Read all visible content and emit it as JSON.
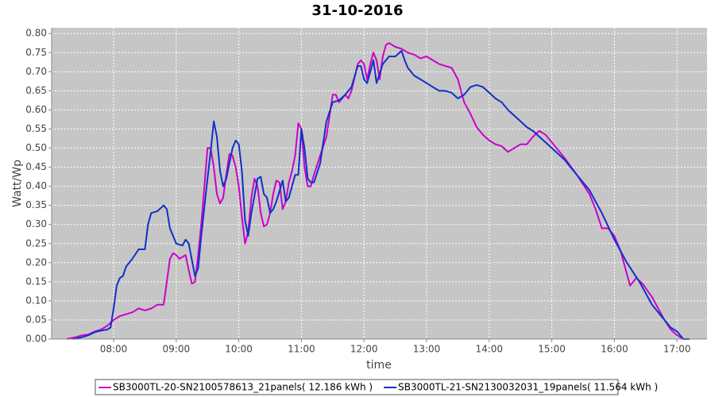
{
  "chart_data": {
    "type": "line",
    "title": "31-10-2016",
    "x_label": "time",
    "y_label": "Watt/Wp",
    "xlim": [
      7.01,
      17.48
    ],
    "xticks": [
      {
        "value": 8,
        "label": "08:00"
      },
      {
        "value": 9,
        "label": "09:00"
      },
      {
        "value": 10,
        "label": "10:00"
      },
      {
        "value": 11,
        "label": "11:00"
      },
      {
        "value": 12,
        "label": "12:00"
      },
      {
        "value": 13,
        "label": "13:00"
      },
      {
        "value": 14,
        "label": "14:00"
      },
      {
        "value": 15,
        "label": "15:00"
      },
      {
        "value": 16,
        "label": "16:00"
      },
      {
        "value": 17,
        "label": "17:00"
      }
    ],
    "ylim": [
      0,
      0.815
    ],
    "yticks": [
      {
        "value": 0,
        "label": "0.00"
      },
      0.05,
      {
        "value": 0.1,
        "label": "0.10"
      },
      0.15,
      {
        "value": 0.2,
        "label": "0.20"
      },
      0.25,
      {
        "value": 0.3,
        "label": "0.30"
      },
      0.35,
      {
        "value": 0.4,
        "label": "0.40"
      },
      0.45,
      {
        "value": 0.5,
        "label": "0.50"
      },
      0.55,
      {
        "value": 0.6,
        "label": "0.60"
      },
      0.65,
      {
        "value": 0.7,
        "label": "0.70"
      },
      0.75,
      {
        "value": 0.8,
        "label": "0.80"
      }
    ],
    "grid": true,
    "series": [
      {
        "name": "SB3000TL-20-SN2100578613_21panels( 12.186 kWh )",
        "color": "#cc00cc",
        "x": [
          7.25,
          7.4,
          7.5,
          7.6,
          7.7,
          7.8,
          7.9,
          8.0,
          8.1,
          8.2,
          8.3,
          8.4,
          8.5,
          8.6,
          8.7,
          8.8,
          8.85,
          8.9,
          8.95,
          9.0,
          9.05,
          9.1,
          9.15,
          9.2,
          9.25,
          9.3,
          9.35,
          9.4,
          9.45,
          9.5,
          9.55,
          9.6,
          9.65,
          9.7,
          9.75,
          9.8,
          9.85,
          9.9,
          9.95,
          10.0,
          10.05,
          10.1,
          10.15,
          10.2,
          10.25,
          10.3,
          10.35,
          10.4,
          10.45,
          10.5,
          10.55,
          10.6,
          10.65,
          10.7,
          10.75,
          10.8,
          10.85,
          10.9,
          10.95,
          11.0,
          11.05,
          11.1,
          11.15,
          11.2,
          11.3,
          11.4,
          11.5,
          11.55,
          11.6,
          11.7,
          11.75,
          11.8,
          11.9,
          11.95,
          12.0,
          12.05,
          12.1,
          12.15,
          12.2,
          12.25,
          12.3,
          12.35,
          12.4,
          12.5,
          12.6,
          12.7,
          12.8,
          12.9,
          13.0,
          13.1,
          13.2,
          13.3,
          13.4,
          13.5,
          13.55,
          13.6,
          13.7,
          13.8,
          13.9,
          14.0,
          14.1,
          14.2,
          14.3,
          14.4,
          14.5,
          14.6,
          14.7,
          14.8,
          14.9,
          15.0,
          15.2,
          15.4,
          15.6,
          15.7,
          15.8,
          15.9,
          16.0,
          16.1,
          16.2,
          16.25,
          16.35,
          16.45,
          16.6,
          16.7,
          16.8,
          16.9,
          17.0,
          17.1
        ],
        "values": [
          0.0,
          0.005,
          0.01,
          0.012,
          0.02,
          0.025,
          0.035,
          0.05,
          0.06,
          0.065,
          0.07,
          0.08,
          0.075,
          0.08,
          0.09,
          0.09,
          0.15,
          0.21,
          0.225,
          0.22,
          0.21,
          0.215,
          0.22,
          0.18,
          0.145,
          0.15,
          0.22,
          0.3,
          0.4,
          0.5,
          0.5,
          0.45,
          0.38,
          0.355,
          0.37,
          0.43,
          0.485,
          0.48,
          0.45,
          0.4,
          0.32,
          0.25,
          0.28,
          0.37,
          0.42,
          0.4,
          0.33,
          0.295,
          0.3,
          0.33,
          0.38,
          0.415,
          0.41,
          0.34,
          0.36,
          0.41,
          0.44,
          0.48,
          0.565,
          0.55,
          0.45,
          0.4,
          0.4,
          0.43,
          0.48,
          0.53,
          0.64,
          0.64,
          0.62,
          0.64,
          0.63,
          0.65,
          0.72,
          0.73,
          0.72,
          0.68,
          0.72,
          0.75,
          0.73,
          0.68,
          0.74,
          0.77,
          0.775,
          0.765,
          0.76,
          0.75,
          0.745,
          0.735,
          0.74,
          0.73,
          0.72,
          0.715,
          0.71,
          0.68,
          0.65,
          0.62,
          0.59,
          0.555,
          0.535,
          0.52,
          0.51,
          0.505,
          0.49,
          0.5,
          0.51,
          0.51,
          0.53,
          0.545,
          0.535,
          0.515,
          0.475,
          0.43,
          0.38,
          0.34,
          0.29,
          0.29,
          0.27,
          0.23,
          0.17,
          0.14,
          0.16,
          0.145,
          0.11,
          0.08,
          0.05,
          0.025,
          0.01,
          0.0
        ]
      },
      {
        "name": "SB3000TL-21-SN2130032031_19panels( 11.564 kWh )",
        "color": "#1030c8",
        "x": [
          7.35,
          7.5,
          7.6,
          7.7,
          7.8,
          7.9,
          7.95,
          8.0,
          8.05,
          8.1,
          8.15,
          8.2,
          8.3,
          8.4,
          8.5,
          8.55,
          8.6,
          8.7,
          8.8,
          8.85,
          8.9,
          9.0,
          9.1,
          9.15,
          9.2,
          9.3,
          9.35,
          9.4,
          9.5,
          9.55,
          9.6,
          9.65,
          9.7,
          9.75,
          9.8,
          9.9,
          9.95,
          10.0,
          10.05,
          10.1,
          10.15,
          10.2,
          10.3,
          10.35,
          10.4,
          10.45,
          10.5,
          10.55,
          10.6,
          10.7,
          10.75,
          10.8,
          10.9,
          10.95,
          11.0,
          11.05,
          11.1,
          11.15,
          11.2,
          11.3,
          11.4,
          11.5,
          11.6,
          11.7,
          11.8,
          11.9,
          11.95,
          12.0,
          12.05,
          12.1,
          12.15,
          12.2,
          12.3,
          12.4,
          12.5,
          12.6,
          12.65,
          12.7,
          12.8,
          12.9,
          13.0,
          13.1,
          13.2,
          13.3,
          13.4,
          13.5,
          13.6,
          13.7,
          13.8,
          13.9,
          14.0,
          14.1,
          14.2,
          14.3,
          14.4,
          14.5,
          14.6,
          14.7,
          14.8,
          14.9,
          15.0,
          15.2,
          15.4,
          15.6,
          15.8,
          16.0,
          16.2,
          16.4,
          16.6,
          16.8,
          16.9,
          17.0,
          17.1,
          17.2
        ],
        "values": [
          0.0,
          0.005,
          0.01,
          0.018,
          0.022,
          0.025,
          0.03,
          0.08,
          0.14,
          0.16,
          0.165,
          0.19,
          0.21,
          0.235,
          0.235,
          0.3,
          0.33,
          0.335,
          0.35,
          0.34,
          0.29,
          0.25,
          0.245,
          0.26,
          0.25,
          0.165,
          0.185,
          0.27,
          0.42,
          0.49,
          0.57,
          0.53,
          0.44,
          0.4,
          0.42,
          0.5,
          0.52,
          0.51,
          0.44,
          0.31,
          0.27,
          0.33,
          0.42,
          0.425,
          0.38,
          0.37,
          0.33,
          0.34,
          0.36,
          0.415,
          0.36,
          0.37,
          0.43,
          0.43,
          0.55,
          0.5,
          0.42,
          0.41,
          0.41,
          0.46,
          0.57,
          0.62,
          0.625,
          0.64,
          0.66,
          0.715,
          0.715,
          0.68,
          0.67,
          0.7,
          0.73,
          0.67,
          0.72,
          0.74,
          0.74,
          0.755,
          0.73,
          0.71,
          0.69,
          0.68,
          0.67,
          0.66,
          0.65,
          0.65,
          0.645,
          0.63,
          0.64,
          0.66,
          0.665,
          0.66,
          0.645,
          0.63,
          0.62,
          0.6,
          0.585,
          0.57,
          0.555,
          0.545,
          0.53,
          0.515,
          0.5,
          0.47,
          0.43,
          0.39,
          0.33,
          0.26,
          0.2,
          0.15,
          0.09,
          0.05,
          0.03,
          0.02,
          0.0,
          0.0
        ]
      }
    ]
  }
}
